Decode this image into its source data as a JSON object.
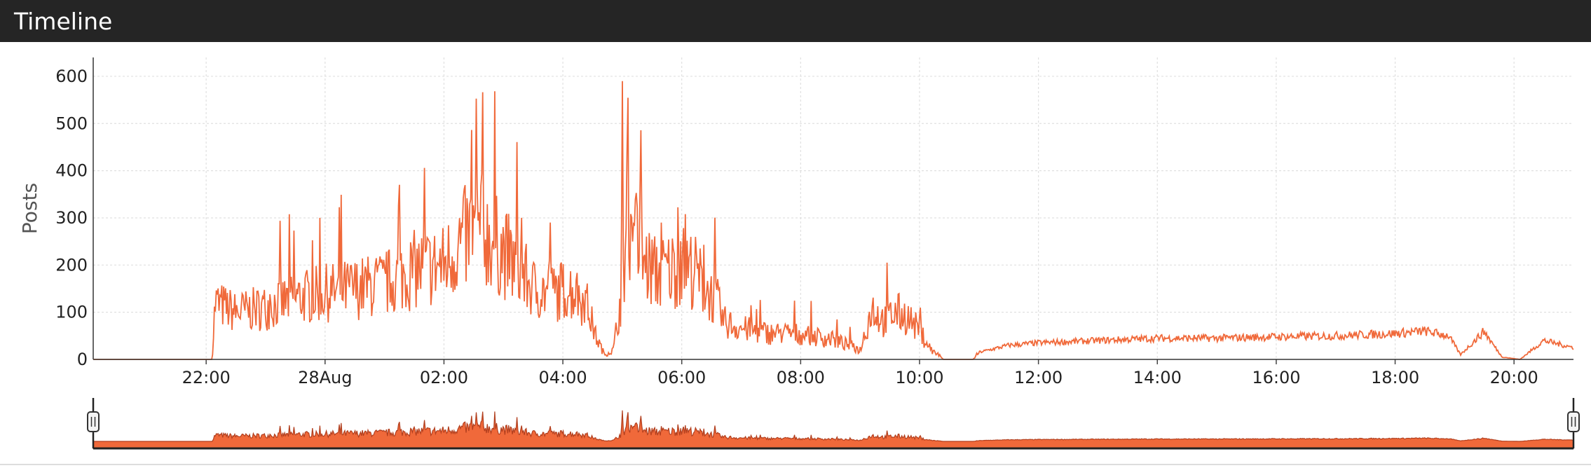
{
  "panel": {
    "title": "Timeline"
  },
  "colors": {
    "line": "#f0693a",
    "area_fill": "#f0693a",
    "area_stroke": "#b23f1e",
    "header_bg": "#252525",
    "grid": "#e0e0e0"
  },
  "chart_data": {
    "type": "line",
    "title": "",
    "xlabel": "",
    "ylabel": "Posts",
    "y_ticks": [
      0,
      100,
      200,
      300,
      400,
      500,
      600
    ],
    "ylim": [
      0,
      640
    ],
    "x_ticks": [
      "22:00",
      "28Aug",
      "02:00",
      "04:00",
      "06:00",
      "08:00",
      "10:00",
      "12:00",
      "14:00",
      "16:00",
      "18:00",
      "20:00"
    ],
    "xlim_hours": [
      -3.9,
      21.0
    ],
    "grid": true,
    "series": [
      {
        "name": "",
        "x_hours": [
          -3.9,
          -1.9,
          -1.85,
          -1.5,
          -1.0,
          -0.5,
          0.0,
          0.5,
          1.0,
          1.5,
          2.0,
          2.3,
          2.6,
          2.9,
          3.2,
          3.5,
          3.8,
          4.1,
          4.4,
          4.55,
          4.7,
          4.85,
          5.0,
          5.1,
          5.2,
          5.4,
          5.6,
          5.8,
          6.0,
          6.2,
          6.4,
          6.6,
          6.7,
          6.9,
          7.2,
          7.5,
          7.8,
          8.2,
          8.6,
          9.0,
          9.2,
          9.4,
          9.6,
          9.8,
          10.0,
          10.2,
          10.4,
          10.9,
          11.0,
          11.5,
          12.0,
          13.0,
          14.0,
          15.0,
          16.0,
          17.0,
          18.0,
          18.5,
          18.9,
          19.1,
          19.3,
          19.5,
          19.6,
          19.8,
          20.1,
          20.5,
          21.0
        ],
        "y": [
          0,
          0,
          120,
          100,
          110,
          130,
          140,
          150,
          160,
          190,
          200,
          250,
          280,
          240,
          200,
          150,
          140,
          150,
          120,
          50,
          10,
          20,
          150,
          300,
          250,
          200,
          180,
          190,
          200,
          190,
          150,
          120,
          80,
          70,
          60,
          55,
          55,
          50,
          40,
          20,
          110,
          80,
          100,
          90,
          60,
          20,
          0,
          0,
          15,
          30,
          35,
          40,
          45,
          45,
          48,
          50,
          55,
          60,
          50,
          10,
          35,
          60,
          40,
          5,
          0,
          40,
          25
        ]
      }
    ]
  }
}
